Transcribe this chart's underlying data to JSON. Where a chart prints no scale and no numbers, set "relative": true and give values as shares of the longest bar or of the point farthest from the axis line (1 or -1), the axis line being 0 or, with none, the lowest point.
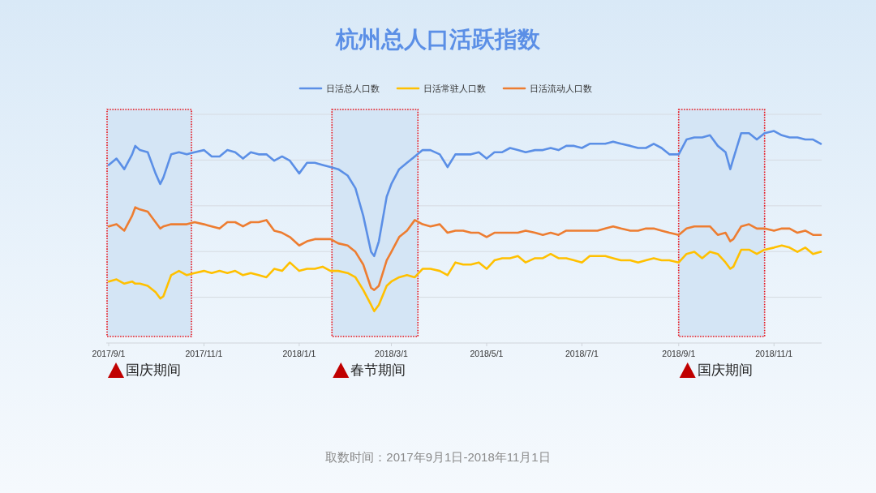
{
  "chart_data": {
    "type": "line",
    "title": "杭州总人口活跃指数",
    "x": [
      "2017-09-01",
      "2017-09-06",
      "2017-09-11",
      "2017-09-16",
      "2017-09-18",
      "2017-09-21",
      "2017-09-26",
      "2017-10-01",
      "2017-10-04",
      "2017-10-06",
      "2017-10-11",
      "2017-10-16",
      "2017-10-21",
      "2017-10-26",
      "2017-11-01",
      "2017-11-06",
      "2017-11-11",
      "2017-11-16",
      "2017-11-21",
      "2017-11-26",
      "2017-12-01",
      "2017-12-06",
      "2017-12-11",
      "2017-12-16",
      "2017-12-21",
      "2017-12-26",
      "2018-01-01",
      "2018-01-06",
      "2018-01-11",
      "2018-01-16",
      "2018-01-21",
      "2018-01-26",
      "2018-02-01",
      "2018-02-06",
      "2018-02-11",
      "2018-02-16",
      "2018-02-18",
      "2018-02-21",
      "2018-02-26",
      "2018-03-01",
      "2018-03-06",
      "2018-03-11",
      "2018-03-16",
      "2018-03-21",
      "2018-03-26",
      "2018-04-01",
      "2018-04-06",
      "2018-04-11",
      "2018-04-16",
      "2018-04-21",
      "2018-04-26",
      "2018-05-01",
      "2018-05-06",
      "2018-05-11",
      "2018-05-16",
      "2018-05-21",
      "2018-05-26",
      "2018-06-01",
      "2018-06-06",
      "2018-06-11",
      "2018-06-16",
      "2018-06-21",
      "2018-06-26",
      "2018-07-01",
      "2018-07-06",
      "2018-07-11",
      "2018-07-16",
      "2018-07-21",
      "2018-07-26",
      "2018-08-01",
      "2018-08-06",
      "2018-08-11",
      "2018-08-16",
      "2018-08-21",
      "2018-08-26",
      "2018-09-01",
      "2018-09-06",
      "2018-09-11",
      "2018-09-16",
      "2018-09-21",
      "2018-09-26",
      "2018-10-01",
      "2018-10-04",
      "2018-10-06",
      "2018-10-11",
      "2018-10-16",
      "2018-10-21",
      "2018-10-26",
      "2018-11-01",
      "2018-11-06",
      "2018-11-11",
      "2018-11-16",
      "2018-11-21",
      "2018-11-26",
      "2018-12-01"
    ],
    "series": [
      {
        "name": "日活总人口数",
        "color": "#5b8fe6",
        "values": [
          0.84,
          0.87,
          0.82,
          0.89,
          0.93,
          0.91,
          0.9,
          0.8,
          0.75,
          0.78,
          0.89,
          0.9,
          0.89,
          0.9,
          0.91,
          0.88,
          0.88,
          0.91,
          0.9,
          0.87,
          0.9,
          0.89,
          0.89,
          0.86,
          0.88,
          0.86,
          0.8,
          0.85,
          0.85,
          0.84,
          0.83,
          0.82,
          0.79,
          0.73,
          0.6,
          0.43,
          0.41,
          0.48,
          0.69,
          0.75,
          0.82,
          0.85,
          0.88,
          0.91,
          0.91,
          0.89,
          0.83,
          0.89,
          0.89,
          0.89,
          0.9,
          0.87,
          0.9,
          0.9,
          0.92,
          0.91,
          0.9,
          0.91,
          0.91,
          0.92,
          0.91,
          0.93,
          0.93,
          0.92,
          0.94,
          0.94,
          0.94,
          0.95,
          0.94,
          0.93,
          0.92,
          0.92,
          0.94,
          0.92,
          0.89,
          0.89,
          0.96,
          0.97,
          0.97,
          0.98,
          0.93,
          0.9,
          0.82,
          0.87,
          0.99,
          0.99,
          0.96,
          0.99,
          1,
          0.98,
          0.97,
          0.97,
          0.96,
          0.96,
          0.94
        ]
      },
      {
        "name": "日活常驻人口数",
        "color": "#ffc000",
        "values": [
          0.29,
          0.3,
          0.28,
          0.29,
          0.28,
          0.28,
          0.27,
          0.24,
          0.21,
          0.22,
          0.32,
          0.34,
          0.32,
          0.33,
          0.34,
          0.33,
          0.34,
          0.33,
          0.34,
          0.32,
          0.33,
          0.32,
          0.31,
          0.35,
          0.34,
          0.38,
          0.34,
          0.35,
          0.35,
          0.36,
          0.34,
          0.34,
          0.33,
          0.31,
          0.25,
          0.18,
          0.15,
          0.18,
          0.27,
          0.29,
          0.31,
          0.32,
          0.31,
          0.35,
          0.35,
          0.34,
          0.32,
          0.38,
          0.37,
          0.37,
          0.38,
          0.35,
          0.39,
          0.4,
          0.4,
          0.41,
          0.38,
          0.4,
          0.4,
          0.42,
          0.4,
          0.4,
          0.39,
          0.38,
          0.41,
          0.41,
          0.41,
          0.4,
          0.39,
          0.39,
          0.38,
          0.39,
          0.4,
          0.39,
          0.39,
          0.38,
          0.42,
          0.43,
          0.4,
          0.43,
          0.42,
          0.38,
          0.35,
          0.36,
          0.44,
          0.44,
          0.42,
          0.44,
          0.45,
          0.46,
          0.45,
          0.43,
          0.45,
          0.42,
          0.43
        ]
      },
      {
        "name": "日活流动人口数",
        "color": "#ed7d31",
        "values": [
          0.55,
          0.56,
          0.53,
          0.6,
          0.64,
          0.63,
          0.62,
          0.57,
          0.54,
          0.55,
          0.56,
          0.56,
          0.56,
          0.57,
          0.56,
          0.55,
          0.54,
          0.57,
          0.57,
          0.55,
          0.57,
          0.57,
          0.58,
          0.53,
          0.52,
          0.5,
          0.46,
          0.48,
          0.49,
          0.49,
          0.49,
          0.47,
          0.46,
          0.43,
          0.37,
          0.26,
          0.25,
          0.27,
          0.39,
          0.43,
          0.5,
          0.53,
          0.58,
          0.56,
          0.55,
          0.56,
          0.52,
          0.53,
          0.53,
          0.52,
          0.52,
          0.5,
          0.52,
          0.52,
          0.52,
          0.52,
          0.53,
          0.52,
          0.51,
          0.52,
          0.51,
          0.53,
          0.53,
          0.53,
          0.53,
          0.53,
          0.54,
          0.55,
          0.54,
          0.53,
          0.53,
          0.54,
          0.54,
          0.53,
          0.52,
          0.51,
          0.54,
          0.55,
          0.55,
          0.55,
          0.51,
          0.52,
          0.48,
          0.49,
          0.55,
          0.56,
          0.54,
          0.54,
          0.53,
          0.54,
          0.54,
          0.52,
          0.53,
          0.51,
          0.51
        ]
      }
    ],
    "relative": true,
    "xlim": [
      "2017-09-01",
      "2018-12-01"
    ],
    "xticks": [
      {
        "value": "2017-09-01",
        "label": "2017/9/1"
      },
      {
        "value": "2017-11-01",
        "label": "2017/11/1"
      },
      {
        "value": "2018-01-01",
        "label": "2018/1/1"
      },
      {
        "value": "2018-03-01",
        "label": "2018/3/1"
      },
      {
        "value": "2018-05-01",
        "label": "2018/5/1"
      },
      {
        "value": "2018-07-01",
        "label": "2018/7/1"
      },
      {
        "value": "2018-09-01",
        "label": "2018/9/1"
      },
      {
        "value": "2018-11-01",
        "label": "2018/11/1"
      }
    ],
    "bands": [
      {
        "axis": "x",
        "from": "2017-09-01",
        "to": "2017-10-24",
        "label": "国庆期间",
        "color": "#d4e5f5"
      },
      {
        "axis": "x",
        "from": "2018-01-23",
        "to": "2018-03-18",
        "label": "春节期间",
        "color": "#d4e5f5"
      },
      {
        "axis": "x",
        "from": "2018-09-02",
        "to": "2018-10-26",
        "label": "国庆期间",
        "color": "#d4e5f5"
      }
    ],
    "grid": "y",
    "legend": "top",
    "annotations": [
      "取数时间：2017年9月1日-2018年11月1日"
    ]
  }
}
